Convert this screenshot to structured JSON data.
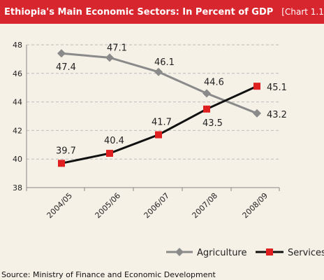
{
  "header": {
    "title": "Ethiopia's Main Economic Sectors: In Percent of GDP",
    "tag": "[Chart 1.1]"
  },
  "source": "Source: Ministry of Finance and Economic Development",
  "colors": {
    "header_bg": "#d8262e",
    "agriculture": "#8a8a8a",
    "services_line": "#111111",
    "services_marker": "#e02020",
    "grid": "#bdbdbd"
  },
  "chart_data": {
    "type": "line",
    "title": "Ethiopia's Main Economic Sectors: In Percent of GDP",
    "categories": [
      "2004/05",
      "2005/06",
      "2006/07",
      "2007/08",
      "2008/09"
    ],
    "series": [
      {
        "name": "Agriculture",
        "values": [
          47.4,
          47.1,
          46.1,
          44.6,
          43.2
        ],
        "labels": [
          "47.4",
          "47.1",
          "46.1",
          "44.6",
          "43.2"
        ],
        "marker": "diamond"
      },
      {
        "name": "Services",
        "values": [
          39.7,
          40.4,
          41.7,
          43.5,
          45.1
        ],
        "labels": [
          "39.7",
          "40.4",
          "41.7",
          "43.5",
          "45.1"
        ],
        "marker": "square"
      }
    ],
    "ylim": [
      38,
      48
    ],
    "yticks": [
      "38",
      "40",
      "42",
      "44",
      "46",
      "48"
    ],
    "grid": "horizontal dashed",
    "legend": "bottom-right"
  }
}
